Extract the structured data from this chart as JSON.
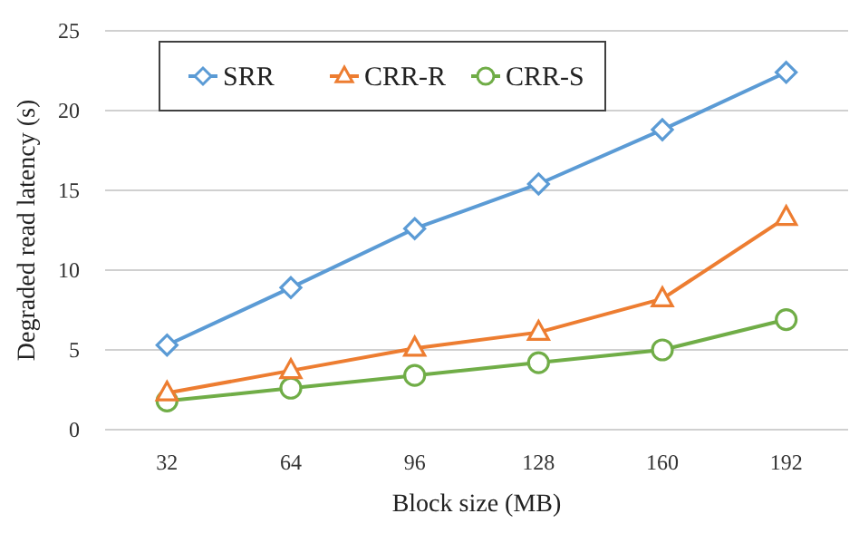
{
  "chart_data": {
    "type": "line",
    "xlabel": "Block size (MB)",
    "ylabel": "Degraded read latency (s)",
    "categories": [
      "32",
      "64",
      "96",
      "128",
      "160",
      "192"
    ],
    "series": [
      {
        "name": "SRR",
        "color": "#5b9bd5",
        "marker": "diamond",
        "values": [
          5.3,
          8.9,
          12.6,
          15.4,
          18.8,
          22.4
        ]
      },
      {
        "name": "CRR-R",
        "color": "#ed7d31",
        "marker": "triangle",
        "values": [
          2.3,
          3.7,
          5.1,
          6.1,
          8.2,
          13.3
        ]
      },
      {
        "name": "CRR-S",
        "color": "#70ad47",
        "marker": "circle",
        "values": [
          1.8,
          2.6,
          3.4,
          4.2,
          5.0,
          6.9
        ]
      }
    ],
    "ylim": [
      0,
      25
    ],
    "yticks": [
      0,
      5,
      10,
      15,
      20,
      25
    ],
    "grid": "y",
    "legend": "top left"
  }
}
